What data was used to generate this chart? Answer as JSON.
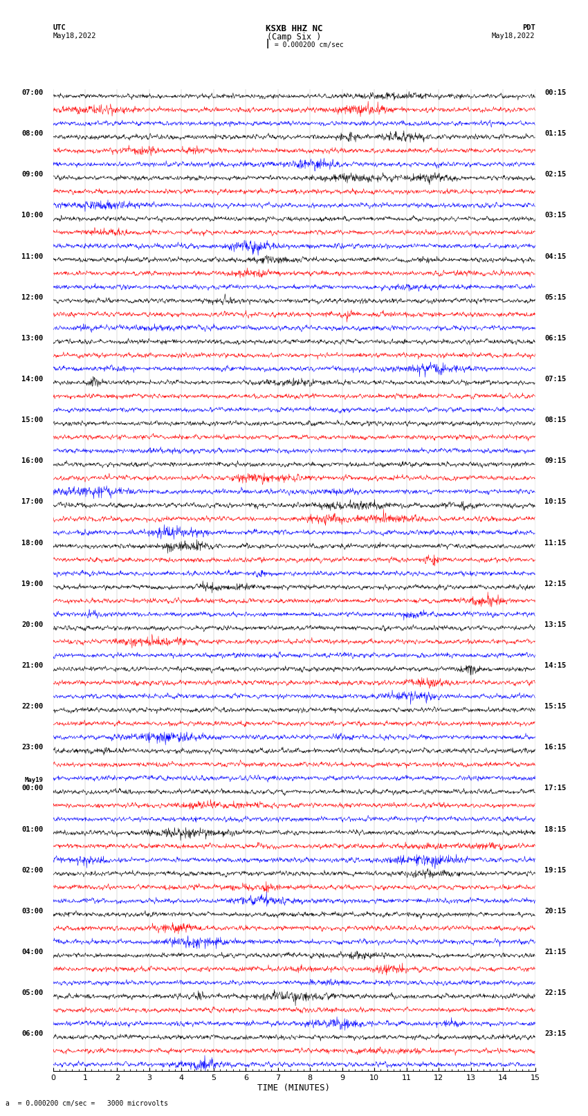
{
  "title_line1": "KSXB HHZ NC",
  "title_line2": "(Camp Six )",
  "scale_bar_label": "= 0.000200 cm/sec",
  "left_label": "UTC",
  "left_date": "May18,2022",
  "right_label": "PDT",
  "right_date": "May18,2022",
  "bottom_label": "TIME (MINUTES)",
  "bottom_note": "a  = 0.000200 cm/sec =   3000 microvolts",
  "utc_times_left": [
    {
      "label": "07:00",
      "hour": 0
    },
    {
      "label": "08:00",
      "hour": 1
    },
    {
      "label": "09:00",
      "hour": 2
    },
    {
      "label": "10:00",
      "hour": 3
    },
    {
      "label": "11:00",
      "hour": 4
    },
    {
      "label": "12:00",
      "hour": 5
    },
    {
      "label": "13:00",
      "hour": 6
    },
    {
      "label": "14:00",
      "hour": 7
    },
    {
      "label": "15:00",
      "hour": 8
    },
    {
      "label": "16:00",
      "hour": 9
    },
    {
      "label": "17:00",
      "hour": 10
    },
    {
      "label": "18:00",
      "hour": 11
    },
    {
      "label": "19:00",
      "hour": 12
    },
    {
      "label": "20:00",
      "hour": 13
    },
    {
      "label": "21:00",
      "hour": 14
    },
    {
      "label": "22:00",
      "hour": 15
    },
    {
      "label": "23:00",
      "hour": 16
    },
    {
      "label": "May19",
      "hour": 17,
      "is_date": true
    },
    {
      "label": "00:00",
      "hour": 17
    },
    {
      "label": "01:00",
      "hour": 18
    },
    {
      "label": "02:00",
      "hour": 19
    },
    {
      "label": "03:00",
      "hour": 20
    },
    {
      "label": "04:00",
      "hour": 21
    },
    {
      "label": "05:00",
      "hour": 22
    },
    {
      "label": "06:00",
      "hour": 23
    }
  ],
  "pdt_times_right": [
    {
      "label": "00:15",
      "hour": 0
    },
    {
      "label": "01:15",
      "hour": 1
    },
    {
      "label": "02:15",
      "hour": 2
    },
    {
      "label": "03:15",
      "hour": 3
    },
    {
      "label": "04:15",
      "hour": 4
    },
    {
      "label": "05:15",
      "hour": 5
    },
    {
      "label": "06:15",
      "hour": 6
    },
    {
      "label": "07:15",
      "hour": 7
    },
    {
      "label": "08:15",
      "hour": 8
    },
    {
      "label": "09:15",
      "hour": 9
    },
    {
      "label": "10:15",
      "hour": 10
    },
    {
      "label": "11:15",
      "hour": 11
    },
    {
      "label": "12:15",
      "hour": 12
    },
    {
      "label": "13:15",
      "hour": 13
    },
    {
      "label": "14:15",
      "hour": 14
    },
    {
      "label": "15:15",
      "hour": 15
    },
    {
      "label": "16:15",
      "hour": 16
    },
    {
      "label": "17:15",
      "hour": 17
    },
    {
      "label": "18:15",
      "hour": 18
    },
    {
      "label": "19:15",
      "hour": 19
    },
    {
      "label": "20:15",
      "hour": 20
    },
    {
      "label": "21:15",
      "hour": 21
    },
    {
      "label": "22:15",
      "hour": 22
    },
    {
      "label": "23:15",
      "hour": 23
    }
  ],
  "hour_colors": [
    [
      "black",
      "red",
      "blue"
    ],
    [
      "black",
      "red",
      "blue"
    ],
    [
      "black",
      "red",
      "blue"
    ],
    [
      "black",
      "red",
      "blue"
    ],
    [
      "black",
      "red",
      "blue"
    ],
    [
      "black",
      "red",
      "blue"
    ],
    [
      "black",
      "red",
      "blue"
    ],
    [
      "black",
      "red",
      "blue"
    ],
    [
      "black",
      "red",
      "blue"
    ],
    [
      "black",
      "red",
      "blue"
    ],
    [
      "black",
      "red",
      "blue"
    ],
    [
      "black",
      "red",
      "blue"
    ],
    [
      "black",
      "red",
      "blue"
    ],
    [
      "black",
      "red",
      "blue"
    ],
    [
      "black",
      "red",
      "blue"
    ],
    [
      "black",
      "red",
      "blue"
    ],
    [
      "black",
      "red",
      "blue"
    ],
    [
      "black",
      "red",
      "blue"
    ],
    [
      "black",
      "red",
      "blue"
    ],
    [
      "black",
      "red",
      "blue"
    ],
    [
      "black",
      "red",
      "blue"
    ],
    [
      "black",
      "red",
      "blue"
    ],
    [
      "black",
      "red",
      "blue"
    ],
    [
      "black",
      "red",
      "blue"
    ]
  ],
  "n_rows_per_hour": 3,
  "n_hours": 24,
  "xlim_min": 0,
  "xlim_max": 15,
  "x_ticks": [
    0,
    1,
    2,
    3,
    4,
    5,
    6,
    7,
    8,
    9,
    10,
    11,
    12,
    13,
    14,
    15
  ],
  "bg_color": "#ffffff",
  "fig_width": 8.5,
  "fig_height": 16.13,
  "trace_lw": 0.4,
  "vline_color": "#aaaaaa",
  "vline_lw": 0.3
}
